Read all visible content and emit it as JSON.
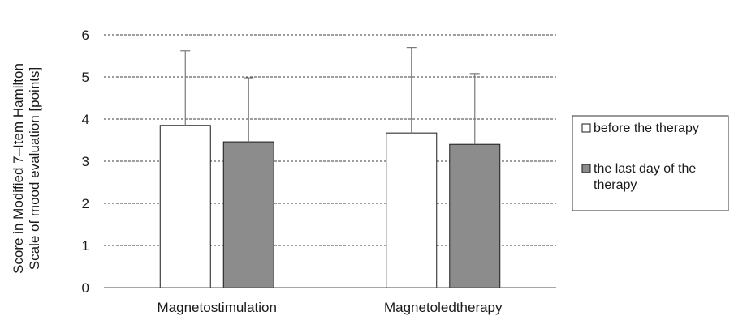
{
  "chart_data": {
    "type": "bar",
    "categories": [
      "Magnetostimulation",
      "Magnetoledtherapy"
    ],
    "series": [
      {
        "name": "before the therapy",
        "values": [
          3.85,
          3.67
        ],
        "error": [
          1.77,
          2.03
        ],
        "color": "#ffffff"
      },
      {
        "name": "the last day of the therapy",
        "values": [
          3.46,
          3.4
        ],
        "error": [
          1.52,
          1.68
        ],
        "color": "#8c8c8c"
      }
    ],
    "ylabel_lines": [
      "Score in Modified 7–Item Hamilton",
      "Scale of mood evaluation [points]"
    ],
    "ylim": [
      0,
      6
    ],
    "yticks": [
      "0",
      "1",
      "2",
      "3",
      "4",
      "5",
      "6"
    ],
    "grid": true,
    "legend_position": "right"
  }
}
